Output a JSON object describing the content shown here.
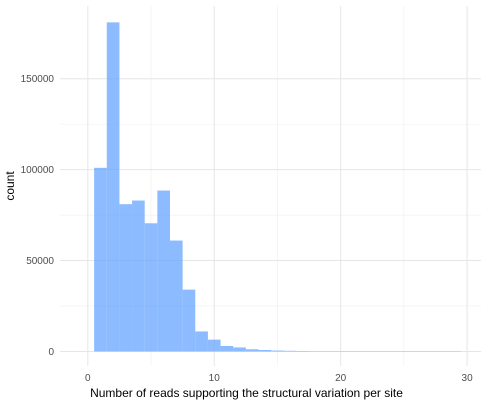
{
  "chart_data": {
    "type": "bar",
    "title": "",
    "xlabel": "Number of reads supporting the structural variation per site",
    "ylabel": "count",
    "xlim": [
      -2.2,
      31.1
    ],
    "ylim": [
      -8000,
      190000
    ],
    "x_ticks": [
      0,
      10,
      20,
      30
    ],
    "y_ticks": [
      0,
      50000,
      100000,
      150000
    ],
    "x_tick_labels": [
      "0",
      "10",
      "20",
      "30"
    ],
    "y_tick_labels": [
      "0",
      "50000",
      "100000",
      "150000"
    ],
    "grid": true,
    "bar_color": "#66a6ff",
    "bar_opacity": 0.75,
    "bins": [
      {
        "x0": 0.5,
        "x1": 1.5,
        "count": 101000
      },
      {
        "x0": 1.5,
        "x1": 2.5,
        "count": 181000
      },
      {
        "x0": 2.5,
        "x1": 3.5,
        "count": 81000
      },
      {
        "x0": 3.5,
        "x1": 4.5,
        "count": 83000
      },
      {
        "x0": 4.5,
        "x1": 5.5,
        "count": 70500
      },
      {
        "x0": 5.5,
        "x1": 6.5,
        "count": 88500
      },
      {
        "x0": 6.5,
        "x1": 7.5,
        "count": 61000
      },
      {
        "x0": 7.5,
        "x1": 8.5,
        "count": 34000
      },
      {
        "x0": 8.5,
        "x1": 9.5,
        "count": 11000
      },
      {
        "x0": 9.5,
        "x1": 10.5,
        "count": 6500
      },
      {
        "x0": 10.5,
        "x1": 11.5,
        "count": 3000
      },
      {
        "x0": 11.5,
        "x1": 12.5,
        "count": 2200
      },
      {
        "x0": 12.5,
        "x1": 13.5,
        "count": 1200
      },
      {
        "x0": 13.5,
        "x1": 14.5,
        "count": 800
      },
      {
        "x0": 14.5,
        "x1": 15.5,
        "count": 500
      },
      {
        "x0": 15.5,
        "x1": 16.5,
        "count": 350
      },
      {
        "x0": 16.5,
        "x1": 17.5,
        "count": 250
      },
      {
        "x0": 17.5,
        "x1": 18.5,
        "count": 180
      },
      {
        "x0": 18.5,
        "x1": 19.5,
        "count": 130
      },
      {
        "x0": 19.5,
        "x1": 20.5,
        "count": 100
      },
      {
        "x0": 20.5,
        "x1": 21.5,
        "count": 80
      },
      {
        "x0": 21.5,
        "x1": 22.5,
        "count": 60
      },
      {
        "x0": 22.5,
        "x1": 23.5,
        "count": 50
      },
      {
        "x0": 23.5,
        "x1": 24.5,
        "count": 40
      },
      {
        "x0": 24.5,
        "x1": 25.5,
        "count": 30
      },
      {
        "x0": 25.5,
        "x1": 26.5,
        "count": 25
      },
      {
        "x0": 26.5,
        "x1": 27.5,
        "count": 20
      },
      {
        "x0": 27.5,
        "x1": 28.5,
        "count": 15
      },
      {
        "x0": 28.5,
        "x1": 29.5,
        "count": 10
      }
    ]
  }
}
